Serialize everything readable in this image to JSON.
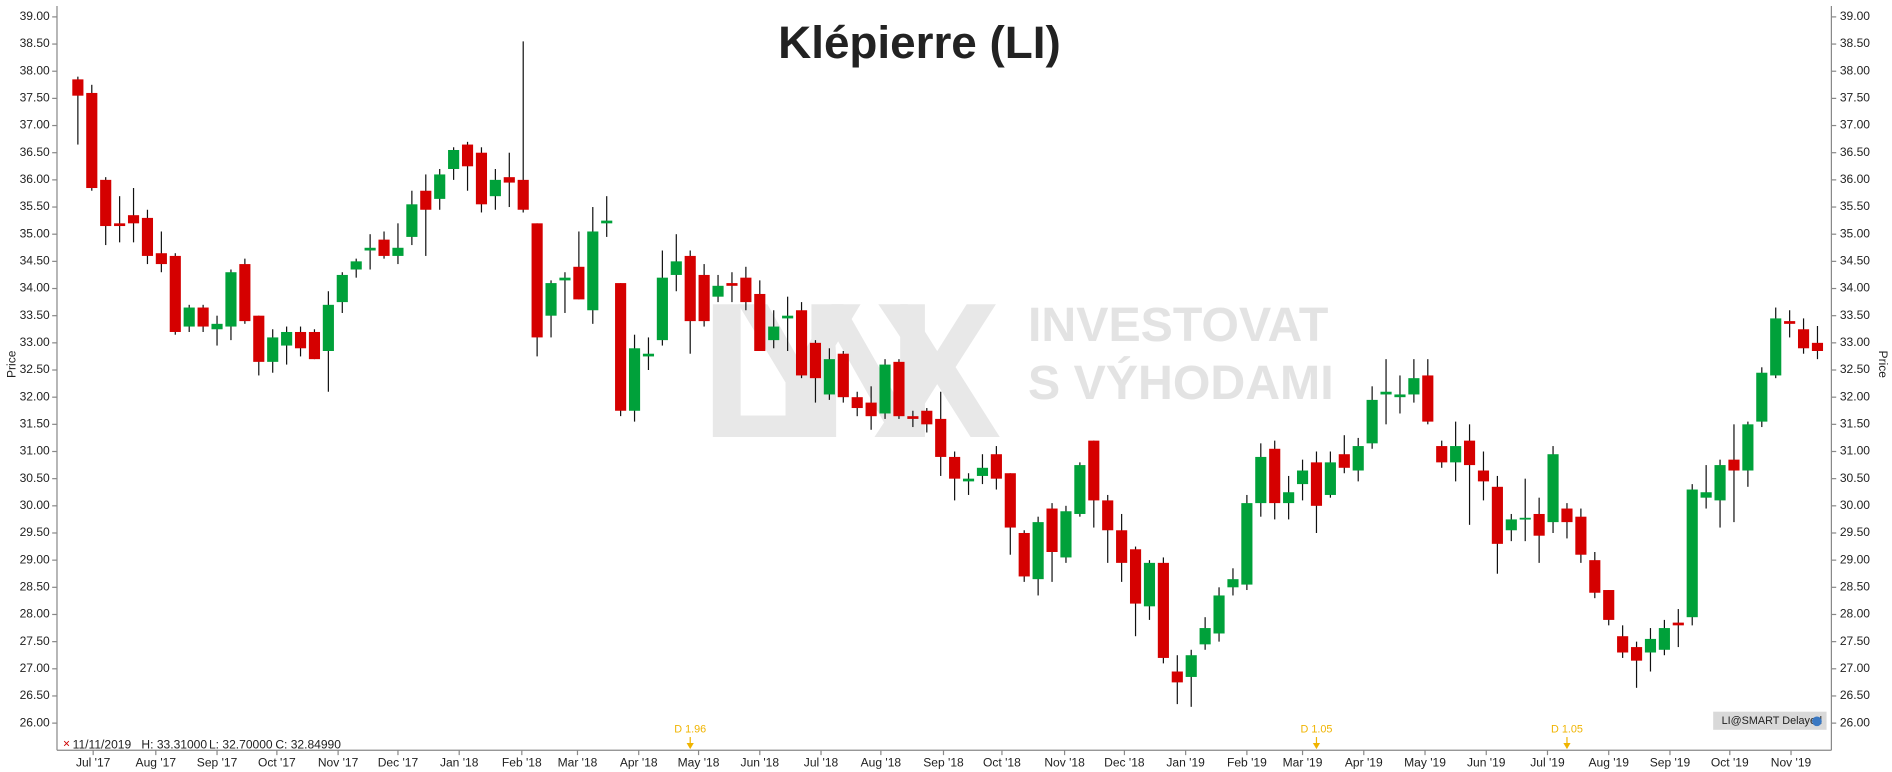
{
  "chart_data": {
    "type": "candlestick",
    "title": "Klépierre (LI)",
    "y_label": "Price",
    "up_color": "#00a13a",
    "down_color": "#d50000",
    "open": [
      37.85,
      37.6,
      36.0,
      35.2,
      35.35,
      35.3,
      34.65,
      34.6,
      33.3,
      33.65,
      33.25,
      33.3,
      34.45,
      33.5,
      32.65,
      32.95,
      33.2,
      33.2,
      32.85,
      33.75,
      34.35,
      34.7,
      34.9,
      34.6,
      34.95,
      35.8,
      35.65,
      36.2,
      36.65,
      36.5,
      35.7,
      36.05,
      36.0,
      35.2,
      33.5,
      34.15,
      34.4,
      33.6,
      35.2,
      34.1,
      31.75,
      32.75,
      33.05,
      34.25,
      34.6,
      34.25,
      33.85,
      34.1,
      34.2,
      33.9,
      33.05,
      33.45,
      33.6,
      33.0,
      32.05,
      32.8,
      32.0,
      31.9,
      31.7,
      32.65,
      31.65,
      31.75,
      31.6,
      30.9,
      30.45,
      30.55,
      30.95,
      30.6,
      29.5,
      28.65,
      29.95,
      29.05,
      29.85,
      31.2,
      30.1,
      29.55,
      29.2,
      28.15,
      28.95,
      26.95,
      26.85,
      27.45,
      27.65,
      28.5,
      28.55,
      30.05,
      31.05,
      30.05,
      30.4,
      30.8,
      30.2,
      30.95,
      30.65,
      31.15,
      32.05,
      32.0,
      32.05,
      32.4,
      31.1,
      30.8,
      31.2,
      30.65,
      30.35,
      29.55,
      29.75,
      29.85,
      29.7,
      29.95,
      29.8,
      29.0,
      28.45,
      27.6,
      27.4,
      27.3,
      27.35,
      27.85,
      27.95,
      30.15,
      30.1,
      30.85,
      30.65,
      31.55,
      32.4,
      33.4,
      33.25,
      33.0
    ],
    "high": [
      37.9,
      37.75,
      36.05,
      35.7,
      35.85,
      35.45,
      35.05,
      34.65,
      33.7,
      33.7,
      33.5,
      34.35,
      34.55,
      33.5,
      33.25,
      33.3,
      33.3,
      33.25,
      33.95,
      34.3,
      34.55,
      35.0,
      35.05,
      35.2,
      35.8,
      36.1,
      36.2,
      36.6,
      36.7,
      36.6,
      36.2,
      36.5,
      38.55,
      35.2,
      34.15,
      34.3,
      35.05,
      35.5,
      35.7,
      34.1,
      33.15,
      33.1,
      34.7,
      35.0,
      34.7,
      34.45,
      34.25,
      34.3,
      34.4,
      34.15,
      33.6,
      33.85,
      33.75,
      33.05,
      32.9,
      32.85,
      32.1,
      32.2,
      32.7,
      32.7,
      31.75,
      31.8,
      32.1,
      31.0,
      30.6,
      30.95,
      31.1,
      30.6,
      29.55,
      29.8,
      30.05,
      30.0,
      30.8,
      31.2,
      30.2,
      29.85,
      29.25,
      29.0,
      29.05,
      27.25,
      27.35,
      27.95,
      28.5,
      28.85,
      30.2,
      31.15,
      31.2,
      30.55,
      30.85,
      31.0,
      31.0,
      31.3,
      31.25,
      32.2,
      32.7,
      32.4,
      32.7,
      32.7,
      31.2,
      31.55,
      31.5,
      31.0,
      30.55,
      29.85,
      30.5,
      30.15,
      31.1,
      30.05,
      29.95,
      29.15,
      28.45,
      27.8,
      27.5,
      27.75,
      27.9,
      28.1,
      30.4,
      30.75,
      30.85,
      31.5,
      31.55,
      32.55,
      33.65,
      33.6,
      33.45,
      33.31
    ],
    "low": [
      36.65,
      35.8,
      34.8,
      34.85,
      34.85,
      34.45,
      34.3,
      33.15,
      33.2,
      33.2,
      32.95,
      33.05,
      33.35,
      32.4,
      32.45,
      32.6,
      32.75,
      32.7,
      32.1,
      33.55,
      34.2,
      34.35,
      34.55,
      34.45,
      34.8,
      34.6,
      35.45,
      36.0,
      35.8,
      35.4,
      35.45,
      35.5,
      35.4,
      32.75,
      33.1,
      33.55,
      33.8,
      33.35,
      34.95,
      31.65,
      31.55,
      32.5,
      32.95,
      33.95,
      32.8,
      33.3,
      33.75,
      33.75,
      33.6,
      32.85,
      32.9,
      32.85,
      32.35,
      31.9,
      31.95,
      31.9,
      31.65,
      31.4,
      31.6,
      31.6,
      31.45,
      31.35,
      30.55,
      30.1,
      30.2,
      30.4,
      30.3,
      29.1,
      28.6,
      28.35,
      28.6,
      28.95,
      29.8,
      29.6,
      28.95,
      28.6,
      27.6,
      27.9,
      27.1,
      26.35,
      26.3,
      27.35,
      27.5,
      28.35,
      28.45,
      29.8,
      29.75,
      29.75,
      30.1,
      29.5,
      30.15,
      30.6,
      30.45,
      31.05,
      31.5,
      31.7,
      31.9,
      31.5,
      30.7,
      30.45,
      29.65,
      30.1,
      28.75,
      29.35,
      29.35,
      28.95,
      29.5,
      29.4,
      28.95,
      28.3,
      27.8,
      27.2,
      26.65,
      26.95,
      27.25,
      27.4,
      27.8,
      29.95,
      29.6,
      29.7,
      30.35,
      31.45,
      32.35,
      33.1,
      32.8,
      32.7
    ],
    "close": [
      37.55,
      35.85,
      35.15,
      35.15,
      35.2,
      34.6,
      34.45,
      33.2,
      33.65,
      33.3,
      33.35,
      34.3,
      33.4,
      32.65,
      33.1,
      33.2,
      32.9,
      32.7,
      33.7,
      34.25,
      34.5,
      34.75,
      34.6,
      34.75,
      35.55,
      35.45,
      36.1,
      36.55,
      36.25,
      35.55,
      36.0,
      35.95,
      35.45,
      33.1,
      34.1,
      34.2,
      33.8,
      35.05,
      35.25,
      31.75,
      32.9,
      32.8,
      34.2,
      34.5,
      33.4,
      33.4,
      34.05,
      34.05,
      33.75,
      32.85,
      33.3,
      33.5,
      32.4,
      32.35,
      32.7,
      32.0,
      31.8,
      31.65,
      32.6,
      31.65,
      31.6,
      31.5,
      30.9,
      30.5,
      30.5,
      30.7,
      30.5,
      29.6,
      28.7,
      29.7,
      29.15,
      29.9,
      30.75,
      30.1,
      29.55,
      28.95,
      28.2,
      28.95,
      27.2,
      26.75,
      27.25,
      27.75,
      28.35,
      28.65,
      30.05,
      30.9,
      30.05,
      30.25,
      30.65,
      30.0,
      30.8,
      30.7,
      31.1,
      31.95,
      32.1,
      32.05,
      32.35,
      31.55,
      30.8,
      31.1,
      30.75,
      30.45,
      29.3,
      29.75,
      29.78,
      29.45,
      30.95,
      29.7,
      29.1,
      28.4,
      27.9,
      27.3,
      27.15,
      27.55,
      27.75,
      27.8,
      30.3,
      30.25,
      30.75,
      30.65,
      31.5,
      32.45,
      33.45,
      33.35,
      32.9,
      32.85
    ],
    "ylim": [
      25.5,
      39.2
    ],
    "yticks": [
      {
        "value": 26,
        "label": "26.00"
      },
      {
        "value": 26.5,
        "label": "26.50"
      },
      {
        "value": 27,
        "label": "27.00"
      },
      {
        "value": 27.5,
        "label": "27.50"
      },
      {
        "value": 28,
        "label": "28.00"
      },
      {
        "value": 28.5,
        "label": "28.50"
      },
      {
        "value": 29,
        "label": "29.00"
      },
      {
        "value": 29.5,
        "label": "29.50"
      },
      {
        "value": 30,
        "label": "30.00"
      },
      {
        "value": 30.5,
        "label": "30.50"
      },
      {
        "value": 31,
        "label": "31.00"
      },
      {
        "value": 31.5,
        "label": "31.50"
      },
      {
        "value": 32,
        "label": "32.00"
      },
      {
        "value": 32.5,
        "label": "32.50"
      },
      {
        "value": 33,
        "label": "33.00"
      },
      {
        "value": 33.5,
        "label": "33.50"
      },
      {
        "value": 34,
        "label": "34.00"
      },
      {
        "value": 34.5,
        "label": "34.50"
      },
      {
        "value": 35,
        "label": "35.00"
      },
      {
        "value": 35.5,
        "label": "35.50"
      },
      {
        "value": 36,
        "label": "36.00"
      },
      {
        "value": 36.5,
        "label": "36.50"
      },
      {
        "value": 37,
        "label": "37.00"
      },
      {
        "value": 37.5,
        "label": "37.50"
      },
      {
        "value": 38,
        "label": "38.00"
      },
      {
        "value": 38.5,
        "label": "38.50"
      },
      {
        "value": 39,
        "label": "39.00"
      }
    ],
    "xlim": [
      -1.5,
      126
    ],
    "xticks": [
      {
        "value": 1.1,
        "label": "Jul '17"
      },
      {
        "value": 5.6,
        "label": "Aug '17"
      },
      {
        "value": 10.0,
        "label": "Sep '17"
      },
      {
        "value": 14.3,
        "label": "Oct '17"
      },
      {
        "value": 18.7,
        "label": "Nov '17"
      },
      {
        "value": 23.0,
        "label": "Dec '17"
      },
      {
        "value": 27.4,
        "label": "Jan '18"
      },
      {
        "value": 31.9,
        "label": "Feb '18"
      },
      {
        "value": 35.9,
        "label": "Mar '18"
      },
      {
        "value": 40.3,
        "label": "Apr '18"
      },
      {
        "value": 44.6,
        "label": "May '18"
      },
      {
        "value": 49.0,
        "label": "Jun '18"
      },
      {
        "value": 53.4,
        "label": "Jul '18"
      },
      {
        "value": 57.7,
        "label": "Aug '18"
      },
      {
        "value": 62.2,
        "label": "Sep '18"
      },
      {
        "value": 66.4,
        "label": "Oct '18"
      },
      {
        "value": 70.9,
        "label": "Nov '18"
      },
      {
        "value": 75.2,
        "label": "Dec '18"
      },
      {
        "value": 79.6,
        "label": "Jan '19"
      },
      {
        "value": 84.0,
        "label": "Feb '19"
      },
      {
        "value": 88.0,
        "label": "Mar '19"
      },
      {
        "value": 92.4,
        "label": "Apr '19"
      },
      {
        "value": 96.8,
        "label": "May '19"
      },
      {
        "value": 101.2,
        "label": "Jun '19"
      },
      {
        "value": 105.6,
        "label": "Jul '19"
      },
      {
        "value": 110.0,
        "label": "Aug '19"
      },
      {
        "value": 114.4,
        "label": "Sep '19"
      },
      {
        "value": 118.7,
        "label": "Oct '19"
      },
      {
        "value": 123.1,
        "label": "Nov '19"
      }
    ],
    "annotations": [
      {
        "x": 44,
        "label": "D 1.96"
      },
      {
        "x": 89,
        "label": "D 1.05"
      },
      {
        "x": 107,
        "label": "D 1.05"
      }
    ]
  },
  "info": {
    "date": "11/11/2019",
    "high": "H: 33.31000",
    "low": "L: 32.70000",
    "close": "C: 32.84990"
  },
  "watermark": {
    "logo": "LYNX",
    "line1": "INVESTOVAT",
    "line2": "S VÝHODAMI"
  },
  "badge": "LI@SMART Delayed"
}
